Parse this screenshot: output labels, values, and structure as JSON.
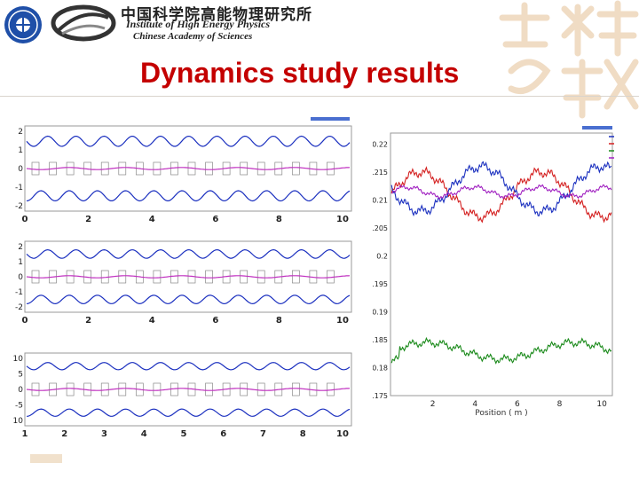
{
  "header": {
    "institute_cn": "中国科学院高能物理研究所",
    "institute_en_line1": "Institute of High Energy Physics",
    "institute_en_line2": "Chinese Academy of Sciences"
  },
  "slide": {
    "title": "Dynamics study results"
  },
  "colors": {
    "title": "#c40000",
    "series_blue": "#1a2fbf",
    "series_red": "#d42020",
    "series_purple": "#a020c0",
    "series_green": "#1a8a1a"
  },
  "chart_data": [
    {
      "type": "line",
      "x_ticks": [
        "0",
        "2",
        "4",
        "6",
        "8",
        "10"
      ],
      "y_ticks": [
        "2",
        "1",
        "0",
        "-1",
        "-2"
      ],
      "xlim": [
        0,
        10.5
      ],
      "ylim": [
        -2.5,
        2.5
      ]
    },
    {
      "type": "line",
      "x_ticks": [
        "0",
        "2",
        "4",
        "6",
        "8",
        "10"
      ],
      "y_ticks": [
        "2",
        "1",
        "0",
        "-1",
        "-2"
      ],
      "xlim": [
        0,
        10.5
      ],
      "ylim": [
        -2.5,
        2.5
      ]
    },
    {
      "type": "line",
      "x_ticks": [
        "1",
        "2",
        "3",
        "4",
        "5",
        "6",
        "7",
        "8",
        "10"
      ],
      "y_ticks": [
        "10",
        "5",
        "0",
        "-5",
        "-10"
      ],
      "xlim": [
        0.8,
        10.2
      ],
      "ylim": [
        -12,
        12
      ]
    },
    {
      "type": "line",
      "x_ticks": [
        "2",
        "4",
        "6",
        "8",
        "10"
      ],
      "y_ticks": [
        "0.22",
        "0.215",
        "0.21",
        "0.205",
        "0.2",
        "0.195",
        "0.19",
        "0.185",
        "0.18",
        "0.175"
      ],
      "xlabel": "Position ( m )",
      "xlim": [
        0,
        10.5
      ],
      "ylim": [
        0.175,
        0.222
      ]
    }
  ]
}
